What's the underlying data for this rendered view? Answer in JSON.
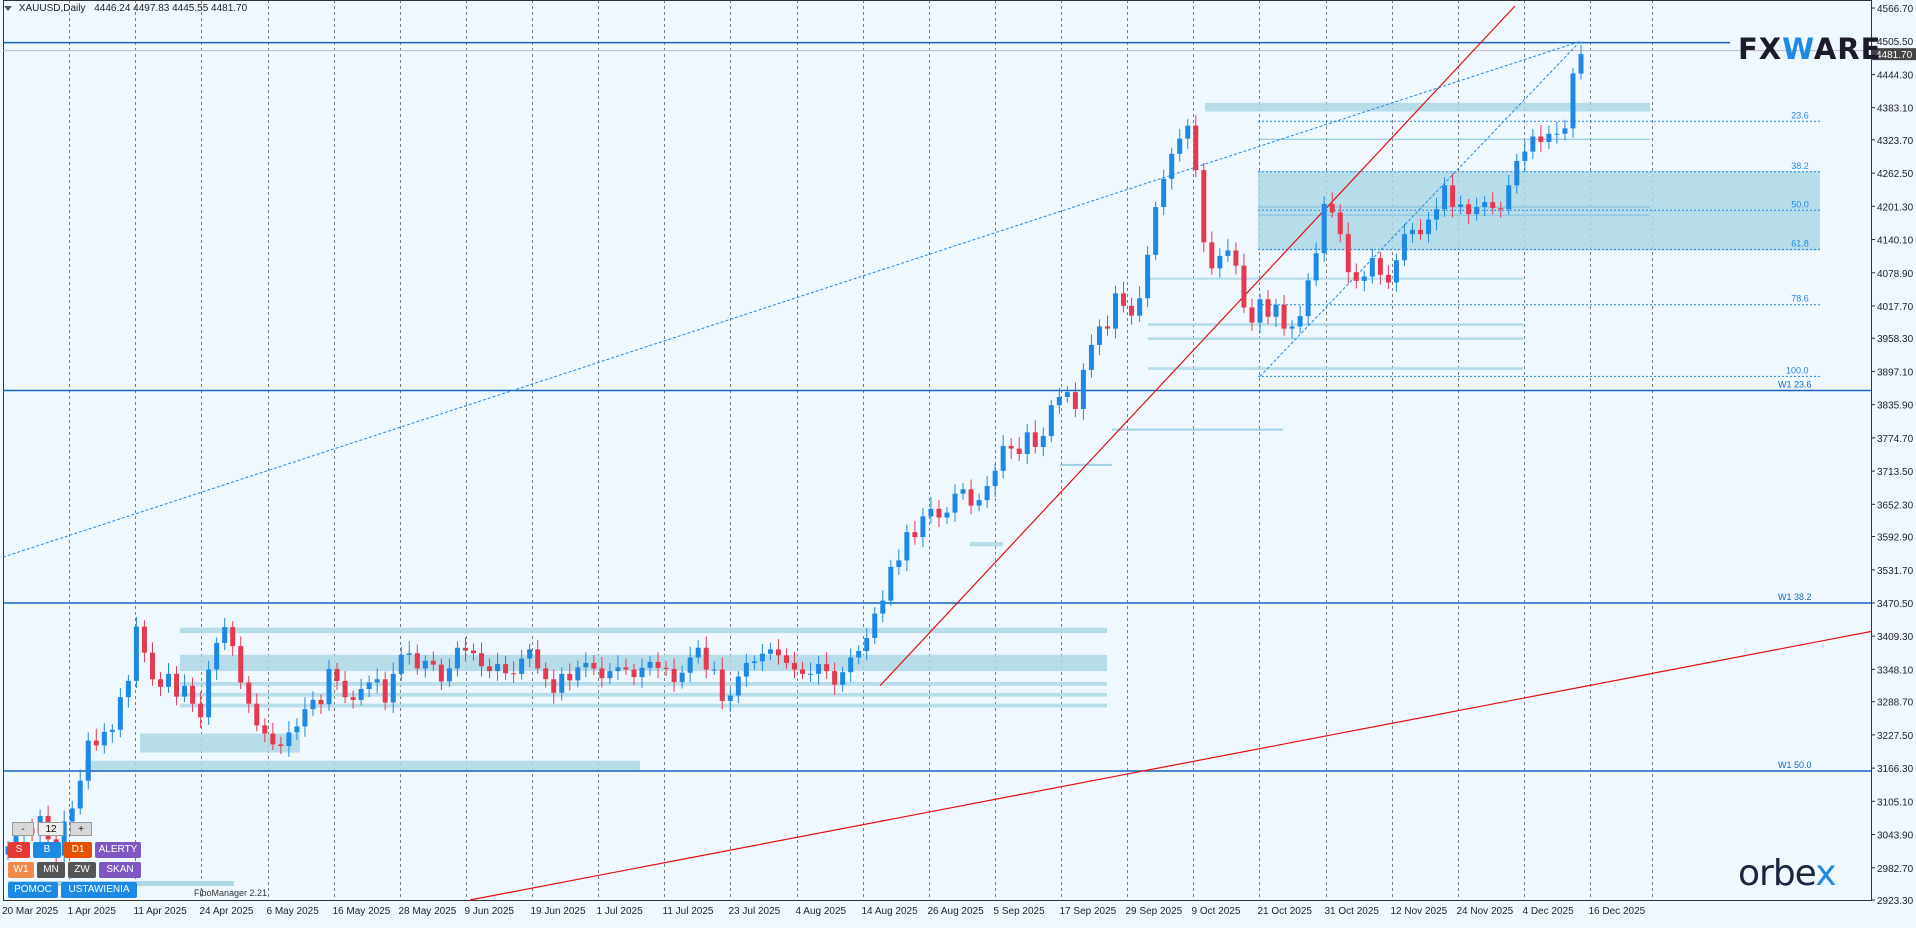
{
  "header": {
    "symbol": "XAUUSD,Daily",
    "ohlc": "4446.24 4497.83 4445.55 4481.70"
  },
  "brand": {
    "fxware_a": "FX",
    "fxware_w": "W",
    "fxware_b": "ARE",
    "orbex_a": "orbe",
    "orbex_b": "x"
  },
  "fibo_manager": "FiboManager 2.21",
  "toolbar": {
    "minus": "-",
    "count": "12",
    "plus": "+",
    "row1": [
      {
        "label": "S",
        "color": "#e53935"
      },
      {
        "label": "B",
        "color": "#1e88e5"
      },
      {
        "label": "D1",
        "color": "#e65100"
      },
      {
        "label": "ALERTY",
        "color": "#7e57c2"
      }
    ],
    "row2": [
      {
        "label": "W1",
        "color": "#ef8a4a"
      },
      {
        "label": "MN",
        "color": "#555555"
      },
      {
        "label": "ZW",
        "color": "#555555"
      },
      {
        "label": "SKAN",
        "color": "#7e57c2"
      }
    ],
    "row3": [
      {
        "label": "POMOC",
        "color": "#1e88e5"
      },
      {
        "label": "USTAWIENIA",
        "color": "#1e88e5"
      }
    ]
  },
  "chart_data": {
    "type": "candlestick",
    "symbol": "XAUUSD",
    "timeframe": "Daily",
    "ylim": [
      2923.3,
      4566.7
    ],
    "y_ticks": [
      "4566.70",
      "4505.50",
      "4444.30",
      "4383.10",
      "4323.70",
      "4262.50",
      "4201.30",
      "4140.10",
      "4078.90",
      "4017.70",
      "3958.30",
      "3897.10",
      "3835.90",
      "3774.70",
      "3713.50",
      "3652.30",
      "3592.90",
      "3531.70",
      "3470.50",
      "3409.30",
      "3348.10",
      "3288.70",
      "3227.50",
      "3166.30",
      "3105.10",
      "3043.90",
      "2982.70",
      "2923.30"
    ],
    "current_price": "4481.70",
    "x_ticks": [
      "20 Mar 2025",
      "1 Apr 2025",
      "11 Apr 2025",
      "24 Apr 2025",
      "6 May 2025",
      "16 May 2025",
      "28 May 2025",
      "9 Jun 2025",
      "19 Jun 2025",
      "1 Jul 2025",
      "11 Jul 2025",
      "23 Jul 2025",
      "4 Aug 2025",
      "14 Aug 2025",
      "26 Aug 2025",
      "5 Sep 2025",
      "17 Sep 2025",
      "29 Sep 2025",
      "9 Oct 2025",
      "21 Oct 2025",
      "31 Oct 2025",
      "12 Nov 2025",
      "24 Nov 2025",
      "4 Dec 2025",
      "16 Dec 2025"
    ],
    "fib_levels": [
      {
        "label": "23.6",
        "price": 4358
      },
      {
        "label": "38.2",
        "price": 4265
      },
      {
        "label": "50.0",
        "price": 4194
      },
      {
        "label": "61.8",
        "price": 4122
      },
      {
        "label": "78.6",
        "price": 4020
      },
      {
        "label": "100.0",
        "price": 3888
      }
    ],
    "weekly_levels": [
      {
        "label": "W1 23.6",
        "price": 3862
      },
      {
        "label": "W1 38.2",
        "price": 3470.5
      },
      {
        "label": "W1 50.0",
        "price": 3161
      }
    ],
    "resistance_price": 4503,
    "closes": [
      3022,
      3041,
      3055,
      3046,
      3078,
      3035,
      3005,
      3068,
      3092,
      3143,
      3217,
      3208,
      3233,
      3237,
      3297,
      3327,
      3427,
      3379,
      3330,
      3316,
      3340,
      3298,
      3318,
      3285,
      3260,
      3348,
      3397,
      3426,
      3391,
      3324,
      3285,
      3245,
      3230,
      3210,
      3207,
      3232,
      3243,
      3275,
      3292,
      3284,
      3349,
      3327,
      3297,
      3292,
      3312,
      3324,
      3330,
      3287,
      3340,
      3375,
      3378,
      3350,
      3364,
      3357,
      3326,
      3350,
      3388,
      3383,
      3378,
      3354,
      3345,
      3358,
      3341,
      3340,
      3368,
      3385,
      3350,
      3330,
      3305,
      3340,
      3328,
      3352,
      3360,
      3350,
      3332,
      3345,
      3352,
      3348,
      3334,
      3351,
      3362,
      3351,
      3349,
      3325,
      3342,
      3370,
      3388,
      3348,
      3348,
      3290,
      3300,
      3335,
      3360,
      3363,
      3377,
      3385,
      3374,
      3360,
      3348,
      3340,
      3340,
      3358,
      3345,
      3320,
      3343,
      3370,
      3382,
      3406,
      3451,
      3475,
      3537,
      3549,
      3601,
      3592,
      3630,
      3644,
      3628,
      3637,
      3672,
      3680,
      3650,
      3660,
      3686,
      3714,
      3760,
      3755,
      3745,
      3785,
      3758,
      3778,
      3835,
      3850,
      3859,
      3828,
      3900,
      3946,
      3980,
      3976,
      4041,
      4018,
      4000,
      4032,
      4112,
      4200,
      4252,
      4298,
      4326,
      4350,
      4268,
      4135,
      4087,
      4110,
      4120,
      4092,
      4015,
      3987,
      4030,
      3998,
      4020,
      3976,
      3980,
      3999,
      4065,
      4115,
      4206,
      4190,
      4150,
      4080,
      4064,
      4072,
      4106,
      4075,
      4061,
      4102,
      4150,
      4158,
      4150,
      4177,
      4196,
      4240,
      4200,
      4205,
      4187,
      4200,
      4209,
      4198,
      4196,
      4240,
      4285,
      4302,
      4330,
      4320,
      4335,
      4335,
      4345,
      4446,
      4481.7
    ]
  }
}
